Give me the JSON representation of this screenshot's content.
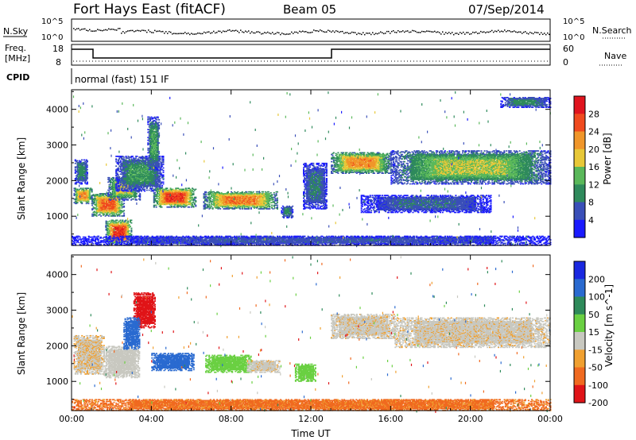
{
  "header": {
    "station": "Fort Hays East (fitACF)",
    "beam": "Beam 05",
    "date": "07/Sep/2014"
  },
  "noise_panel": {
    "left_label": "N.Sky",
    "right_label": "N.Search",
    "left_ticks": [
      "10^5",
      "10^0"
    ],
    "right_ticks": [
      "10^5",
      "10^0"
    ]
  },
  "freq_panel": {
    "left_label_line1": "Freq.",
    "left_label_line2": "[MHz]",
    "left_ticks": [
      "18",
      "8"
    ],
    "right_ticks": [
      "60",
      "0"
    ],
    "right_label": "Nave"
  },
  "cpid": {
    "label": "CPID",
    "text": "normal (fast) 151 IF"
  },
  "chart_data": [
    {
      "type": "heatmap",
      "name": "power",
      "xlabel": "Time UT",
      "ylabel": "Slant Range [km]",
      "xlim": [
        0,
        24
      ],
      "ylim": [
        180,
        4550
      ],
      "x_ticks": [
        "00:00",
        "04:00",
        "08:00",
        "12:00",
        "16:00",
        "20:00",
        "00:00"
      ],
      "y_ticks": [
        1000,
        2000,
        3000,
        4000
      ],
      "colorbar": {
        "label": "Power [dB]",
        "ticks": [
          4,
          8,
          12,
          16,
          20,
          24,
          28
        ],
        "colors": [
          "#1a1aff",
          "#3a4fb8",
          "#2f8a5c",
          "#5ab85a",
          "#e8c838",
          "#f0962a",
          "#f04a1e",
          "#e0141e"
        ]
      },
      "echo_regions": [
        {
          "t0": 0.1,
          "t1": 1.0,
          "r0": 1350,
          "r1": 1800,
          "p": 18
        },
        {
          "t0": 0.15,
          "t1": 0.8,
          "r0": 1900,
          "r1": 2600,
          "p": 8
        },
        {
          "t0": 1.0,
          "t1": 2.6,
          "r0": 1000,
          "r1": 1650,
          "p": 20
        },
        {
          "t0": 1.8,
          "t1": 3.4,
          "r0": 1450,
          "r1": 2100,
          "p": 14
        },
        {
          "t0": 2.2,
          "t1": 4.6,
          "r0": 1700,
          "r1": 2700,
          "p": 9
        },
        {
          "t0": 1.7,
          "t1": 3.0,
          "r0": 180,
          "r1": 900,
          "p": 22
        },
        {
          "t0": 3.8,
          "t1": 4.4,
          "r0": 2300,
          "r1": 3800,
          "p": 10
        },
        {
          "t0": 4.1,
          "t1": 6.2,
          "r0": 1250,
          "r1": 1800,
          "p": 22
        },
        {
          "t0": 6.6,
          "t1": 10.3,
          "r0": 1200,
          "r1": 1700,
          "p": 19
        },
        {
          "t0": 10.5,
          "t1": 11.1,
          "r0": 950,
          "r1": 1300,
          "p": 8
        },
        {
          "t0": 11.6,
          "t1": 12.8,
          "r0": 1200,
          "r1": 2500,
          "p": 7
        },
        {
          "t0": 13.0,
          "t1": 16.0,
          "r0": 2200,
          "r1": 2800,
          "p": 18
        },
        {
          "t0": 16.0,
          "t1": 24.0,
          "r0": 1900,
          "r1": 2850,
          "p": 13
        },
        {
          "t0": 14.5,
          "t1": 21.0,
          "r0": 1100,
          "r1": 1600,
          "p": 6
        },
        {
          "t0": 21.5,
          "t1": 24.0,
          "r0": 4050,
          "r1": 4350,
          "p": 8
        },
        {
          "t0": 0.0,
          "t1": 24.0,
          "r0": 180,
          "r1": 450,
          "p": 5
        }
      ]
    },
    {
      "type": "heatmap",
      "name": "velocity",
      "xlabel": "Time UT",
      "ylabel": "Slant Range [km]",
      "xlim": [
        0,
        24
      ],
      "ylim": [
        180,
        4550
      ],
      "x_ticks": [
        "00:00",
        "04:00",
        "08:00",
        "12:00",
        "16:00",
        "20:00",
        "00:00"
      ],
      "y_ticks": [
        1000,
        2000,
        3000,
        4000
      ],
      "colorbar": {
        "label": "Velocity [m s^-1]",
        "ticks": [
          200,
          100,
          50,
          15,
          -15,
          -50,
          -100,
          -200
        ],
        "colors": [
          "#1a28e0",
          "#2a6ad0",
          "#2e8a5a",
          "#6ad042",
          "#c8c8c0",
          "#f0a030",
          "#f06a20",
          "#e01418"
        ]
      },
      "echo_regions": [
        {
          "t0": 0.1,
          "t1": 1.6,
          "r0": 1200,
          "r1": 2300,
          "v": -10
        },
        {
          "t0": 1.6,
          "t1": 3.4,
          "r0": 1100,
          "r1": 2000,
          "v": 0
        },
        {
          "t0": 3.1,
          "t1": 4.2,
          "r0": 2500,
          "r1": 3500,
          "v": -160
        },
        {
          "t0": 2.6,
          "t1": 3.4,
          "r0": 1900,
          "r1": 2800,
          "v": 180
        },
        {
          "t0": 4.0,
          "t1": 6.1,
          "r0": 1300,
          "r1": 1800,
          "v": 180
        },
        {
          "t0": 6.7,
          "t1": 9.0,
          "r0": 1250,
          "r1": 1750,
          "v": 30
        },
        {
          "t0": 8.8,
          "t1": 10.4,
          "r0": 1250,
          "r1": 1600,
          "v": -5
        },
        {
          "t0": 11.2,
          "t1": 12.2,
          "r0": 1000,
          "r1": 1500,
          "v": 30
        },
        {
          "t0": 13.0,
          "t1": 16.2,
          "r0": 2200,
          "r1": 2900,
          "v": -5
        },
        {
          "t0": 16.2,
          "t1": 24.0,
          "r0": 1950,
          "r1": 2800,
          "v": -5
        },
        {
          "t0": 0.0,
          "t1": 24.0,
          "r0": 180,
          "r1": 500,
          "v": -60
        }
      ]
    }
  ]
}
